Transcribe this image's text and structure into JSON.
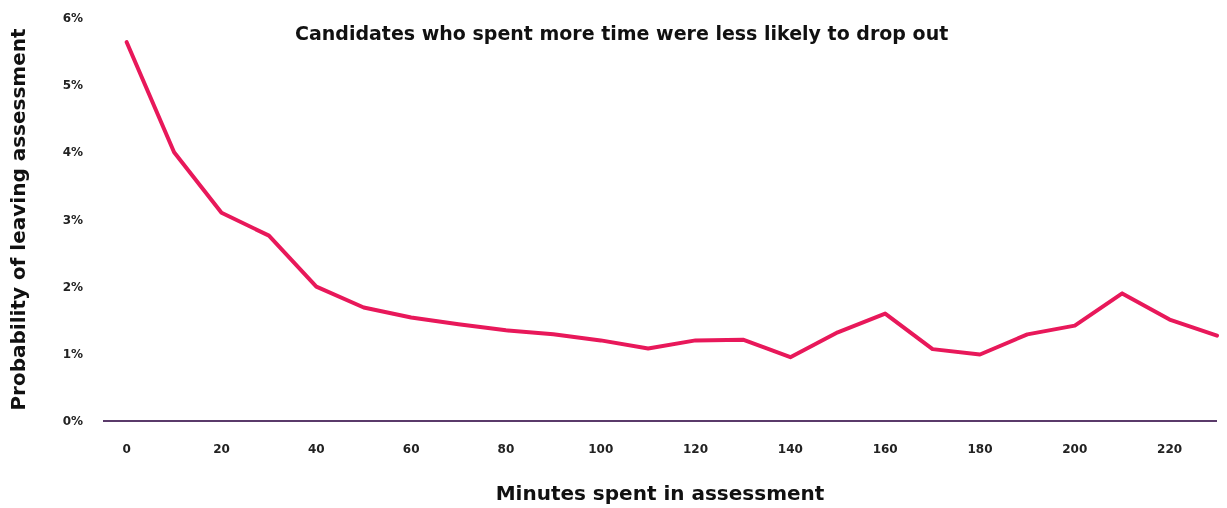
{
  "chart_data": {
    "type": "line",
    "title": "Candidates who spent more time were less likely to drop out",
    "xlabel": "Minutes spent in assessment",
    "ylabel": "Probability of leaving assessment",
    "x": [
      0,
      10,
      20,
      30,
      40,
      50,
      60,
      70,
      80,
      90,
      100,
      110,
      120,
      130,
      140,
      150,
      160,
      170,
      180,
      190,
      200,
      210,
      220,
      230
    ],
    "series": [
      {
        "color": "#e8185a",
        "values": [
          5.64,
          4.0,
          3.1,
          2.76,
          2.0,
          1.69,
          1.54,
          1.44,
          1.35,
          1.29,
          1.2,
          1.08,
          1.2,
          1.21,
          0.95,
          1.32,
          1.6,
          1.07,
          0.99,
          1.29,
          1.42,
          1.9,
          1.51,
          1.27
        ]
      }
    ],
    "xlim": [
      -5,
      230
    ],
    "xticks": [
      0,
      20,
      40,
      60,
      80,
      100,
      120,
      140,
      160,
      180,
      200,
      220
    ],
    "ylim": [
      0,
      6
    ],
    "yticks": [
      {
        "value": 0,
        "label": "0%"
      },
      {
        "value": 1,
        "label": "1%"
      },
      {
        "value": 2,
        "label": "2%"
      },
      {
        "value": 3,
        "label": "3%"
      },
      {
        "value": 4,
        "label": "4%"
      },
      {
        "value": 5,
        "label": "5%"
      },
      {
        "value": 6,
        "label": "6%"
      }
    ],
    "grid": false,
    "marker": "none",
    "line_style": "solid"
  }
}
